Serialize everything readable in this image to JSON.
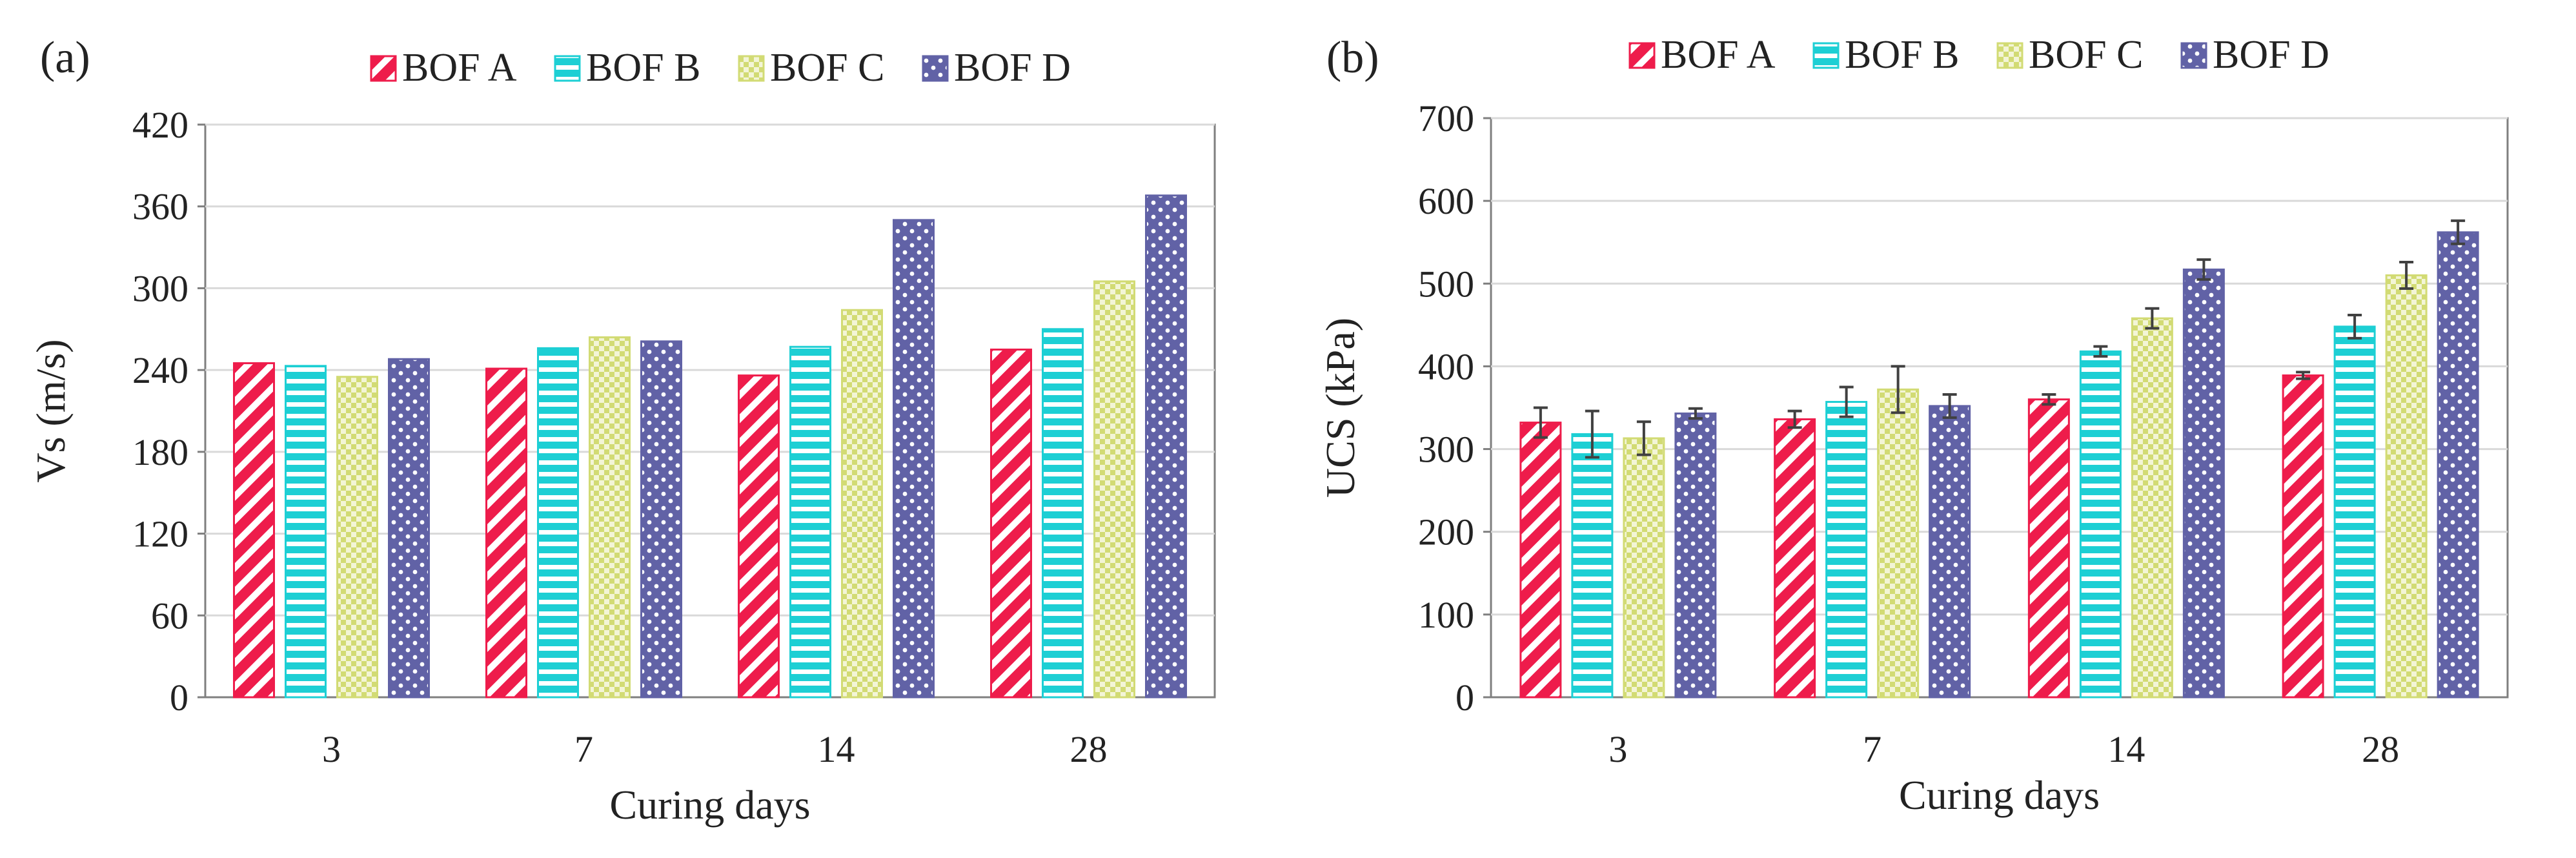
{
  "figure": {
    "colors": {
      "BOF A": "#ee1c4b",
      "BOF B": "#1dcfd4",
      "BOF C": "#d2db74",
      "BOF D": "#6162a6",
      "grid": "#d9d9d9",
      "axis": "#7f7f7f",
      "error_bar": "#404040"
    }
  },
  "chart_data": [
    {
      "type": "bar",
      "panel_label": "(a)",
      "title": "",
      "xlabel": "Curing days",
      "ylabel": "Vs (m/s)",
      "categories": [
        "3",
        "7",
        "14",
        "28"
      ],
      "ylim": [
        0,
        420
      ],
      "yticks": [
        "0",
        "60",
        "120",
        "180",
        "240",
        "300",
        "360",
        "420"
      ],
      "grid": true,
      "legend_position": "top",
      "series": [
        {
          "name": "BOF A",
          "pattern": "diagonal-stripes",
          "values": [
            245,
            241,
            236,
            255
          ]
        },
        {
          "name": "BOF B",
          "pattern": "horizontal-stripes",
          "values": [
            243,
            256,
            257,
            270
          ]
        },
        {
          "name": "BOF C",
          "pattern": "checkerboard",
          "values": [
            235,
            264,
            284,
            305
          ]
        },
        {
          "name": "BOF D",
          "pattern": "dots",
          "values": [
            248,
            261,
            350,
            368
          ]
        }
      ]
    },
    {
      "type": "bar",
      "panel_label": "(b)",
      "title": "",
      "xlabel": "Curing days",
      "ylabel": "UCS (kPa)",
      "categories": [
        "3",
        "7",
        "14",
        "28"
      ],
      "ylim": [
        0,
        700
      ],
      "yticks": [
        "0",
        "100",
        "200",
        "300",
        "400",
        "500",
        "600",
        "700"
      ],
      "grid": true,
      "legend_position": "top",
      "series": [
        {
          "name": "BOF A",
          "pattern": "diagonal-stripes",
          "values": [
            332,
            336,
            360,
            389
          ],
          "errors": [
            18,
            10,
            6,
            4
          ]
        },
        {
          "name": "BOF B",
          "pattern": "horizontal-stripes",
          "values": [
            318,
            357,
            418,
            448
          ],
          "errors": [
            28,
            18,
            6,
            14
          ]
        },
        {
          "name": "BOF C",
          "pattern": "checkerboard",
          "values": [
            313,
            372,
            458,
            510
          ],
          "errors": [
            20,
            28,
            12,
            16
          ]
        },
        {
          "name": "BOF D",
          "pattern": "dots",
          "values": [
            343,
            352,
            517,
            562
          ],
          "errors": [
            6,
            14,
            12,
            14
          ]
        }
      ]
    }
  ]
}
